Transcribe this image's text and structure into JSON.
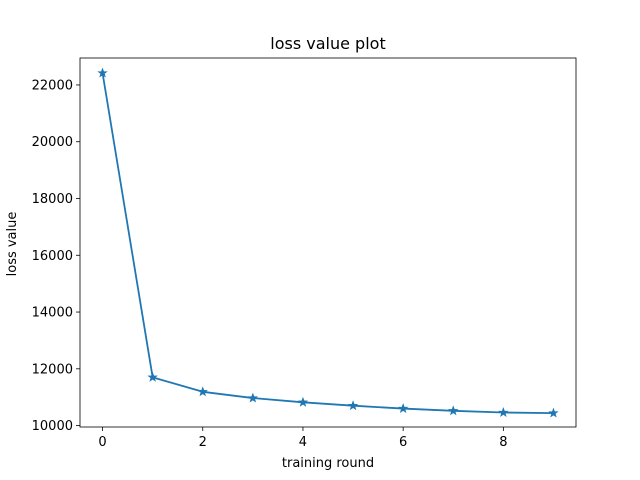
{
  "chart_data": {
    "type": "line",
    "title": "loss value plot",
    "xlabel": "training round",
    "ylabel": "loss value",
    "xlim": [
      -0.45,
      9.45
    ],
    "ylim": [
      9950,
      22950
    ],
    "x_ticks": [
      0,
      2,
      4,
      6,
      8
    ],
    "y_ticks": [
      10000,
      12000,
      14000,
      16000,
      18000,
      20000,
      22000
    ],
    "grid": false,
    "legend": "none",
    "marker": "star",
    "series": [
      {
        "color": "#1f77b4",
        "x": [
          0,
          1,
          2,
          3,
          4,
          5,
          6,
          7,
          8,
          9
        ],
        "values": [
          22420,
          11700,
          11190,
          10970,
          10820,
          10700,
          10600,
          10520,
          10460,
          10440
        ]
      }
    ]
  }
}
